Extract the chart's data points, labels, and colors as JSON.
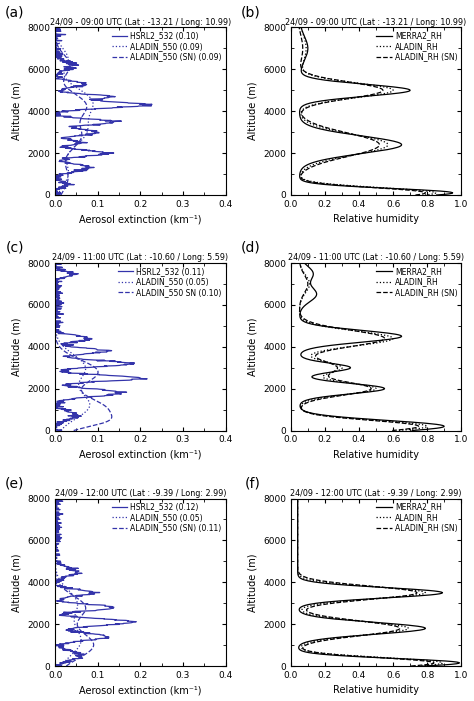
{
  "panels": [
    {
      "label": "a",
      "title": "24/09 - 09:00 UTC (Lat : -13.21 / Long: 10.99)",
      "xlabel": "Aerosol extinction (km⁻¹)",
      "ylabel": "Altitude (m)",
      "xlim": [
        0.0,
        0.4
      ],
      "ylim": [
        0,
        8000
      ],
      "xticks": [
        0.0,
        0.1,
        0.2,
        0.3,
        0.4
      ],
      "yticks": [
        0,
        2000,
        4000,
        6000,
        8000
      ],
      "legend": [
        "HSRL2_532 (0.10)",
        "ALADIN_550 (0.09)",
        "ALADIN_550 (SN) (0.09)"
      ],
      "line_styles": [
        "-",
        ":",
        "--"
      ]
    },
    {
      "label": "b",
      "title": "24/09 - 09:00 UTC (Lat : -13.21 / Long: 10.99)",
      "xlabel": "Relative humidity",
      "ylabel": "Altitude (m)",
      "xlim": [
        0.0,
        1.0
      ],
      "ylim": [
        0,
        8000
      ],
      "xticks": [
        0.0,
        0.2,
        0.4,
        0.6,
        0.8,
        1.0
      ],
      "yticks": [
        0,
        2000,
        4000,
        6000,
        8000
      ],
      "legend": [
        "MERRA2_RH",
        "ALADIN_RH",
        "ALADIN_RH (SN)"
      ],
      "line_styles": [
        "-",
        ":",
        "--"
      ]
    },
    {
      "label": "c",
      "title": "24/09 - 11:00 UTC (Lat : -10.60 / Long: 5.59)",
      "xlabel": "Aerosol extinction (km⁻¹)",
      "ylabel": "Altitude (m)",
      "xlim": [
        0.0,
        0.4
      ],
      "ylim": [
        0,
        8000
      ],
      "xticks": [
        0.0,
        0.1,
        0.2,
        0.3,
        0.4
      ],
      "yticks": [
        0,
        2000,
        4000,
        6000,
        8000
      ],
      "legend": [
        "HSRL2_532 (0.11)",
        "ALADIN_550 (0.05)",
        "ALADIN_550 SN (0.10)"
      ],
      "line_styles": [
        "-",
        ":",
        "--"
      ]
    },
    {
      "label": "d",
      "title": "24/09 - 11:00 UTC (Lat : -10.60 / Long: 5.59)",
      "xlabel": "Relative humidity",
      "ylabel": "Altitude (m)",
      "xlim": [
        0.0,
        1.0
      ],
      "ylim": [
        0,
        8000
      ],
      "xticks": [
        0.0,
        0.2,
        0.4,
        0.6,
        0.8,
        1.0
      ],
      "yticks": [
        0,
        2000,
        4000,
        6000,
        8000
      ],
      "legend": [
        "MERRA2_RH",
        "ALADIN_RH",
        "ALADIN_RH (SN)"
      ],
      "line_styles": [
        "-",
        ":",
        "--"
      ]
    },
    {
      "label": "e",
      "title": "24/09 - 12:00 UTC (Lat : -9.39 / Long: 2.99)",
      "xlabel": "Aerosol extinction (km⁻¹)",
      "ylabel": "Altitude (m)",
      "xlim": [
        0.0,
        0.4
      ],
      "ylim": [
        0,
        8000
      ],
      "xticks": [
        0.0,
        0.1,
        0.2,
        0.3,
        0.4
      ],
      "yticks": [
        0,
        2000,
        4000,
        6000,
        8000
      ],
      "legend": [
        "HSRL2_532 (0.12)",
        "ALADIN_550 (0.05)",
        "ALADIN_550 (SN) (0.11)"
      ],
      "line_styles": [
        "-",
        ":",
        "--"
      ]
    },
    {
      "label": "f",
      "title": "24/09 - 12:00 UTC (Lat : -9.39 / Long: 2.99)",
      "xlabel": "Relative humidity",
      "ylabel": "Altitude (m)",
      "xlim": [
        0.0,
        1.0
      ],
      "ylim": [
        0,
        8000
      ],
      "xticks": [
        0.0,
        0.2,
        0.4,
        0.6,
        0.8,
        1.0
      ],
      "yticks": [
        0,
        2000,
        4000,
        6000,
        8000
      ],
      "legend": [
        "MERRA2_RH",
        "ALADIN_RH",
        "ALADIN_RH (SN)"
      ],
      "line_styles": [
        "-",
        ":",
        "--"
      ]
    }
  ],
  "blue_color": "#3333aa",
  "black_color": "#000000",
  "lw": 0.9,
  "fs_title": 5.8,
  "fs_label": 7.0,
  "fs_tick": 6.5,
  "fs_legend": 5.5,
  "fs_panel_label": 10
}
